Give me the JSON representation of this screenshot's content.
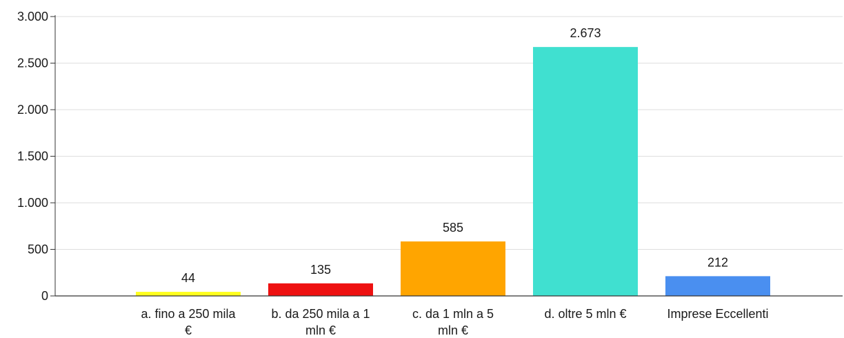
{
  "chart_data": {
    "type": "bar",
    "title": "",
    "xlabel": "",
    "ylabel": "",
    "ylim": [
      0,
      3000
    ],
    "yticks": [
      0,
      500,
      1000,
      1500,
      2000,
      2500,
      3000
    ],
    "ytick_labels": [
      "0",
      "500",
      "1.000",
      "1.500",
      "2.000",
      "2.500",
      "3.000"
    ],
    "grid": true,
    "categories": [
      [
        "a. fino a 250 mila",
        "€"
      ],
      [
        "b. da 250 mila a 1",
        "mln €"
      ],
      [
        "c. da 1 mln a 5",
        "mln €"
      ],
      [
        "d. oltre 5 mln €"
      ],
      [
        "Imprese Eccellenti"
      ]
    ],
    "values": [
      44,
      135,
      585,
      2673,
      212
    ],
    "value_labels": [
      "44",
      "135",
      "585",
      "2.673",
      "212"
    ],
    "colors": [
      "#ffff1f",
      "#ee1111",
      "#ffa500",
      "#40e0d0",
      "#4a8ff0"
    ]
  }
}
